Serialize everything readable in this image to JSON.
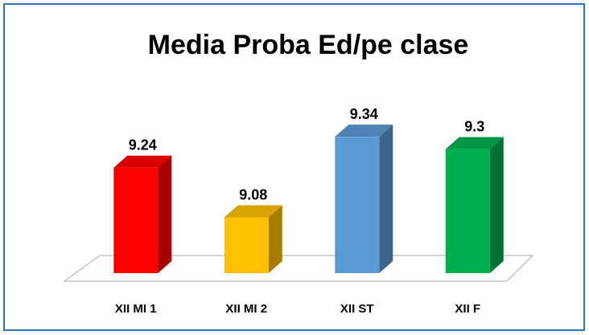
{
  "chart_data": {
    "type": "bar3d",
    "title": "Media Proba Ed/pe clase",
    "categories": [
      "XII MI 1",
      "XII MI 2",
      "XII ST",
      "XII F"
    ],
    "values": [
      9.24,
      9.08,
      9.34,
      9.3
    ],
    "colors": [
      "#ff0000",
      "#ffc000",
      "#5b9bd5",
      "#00b050"
    ],
    "ylim": [
      8.9,
      9.4
    ]
  }
}
